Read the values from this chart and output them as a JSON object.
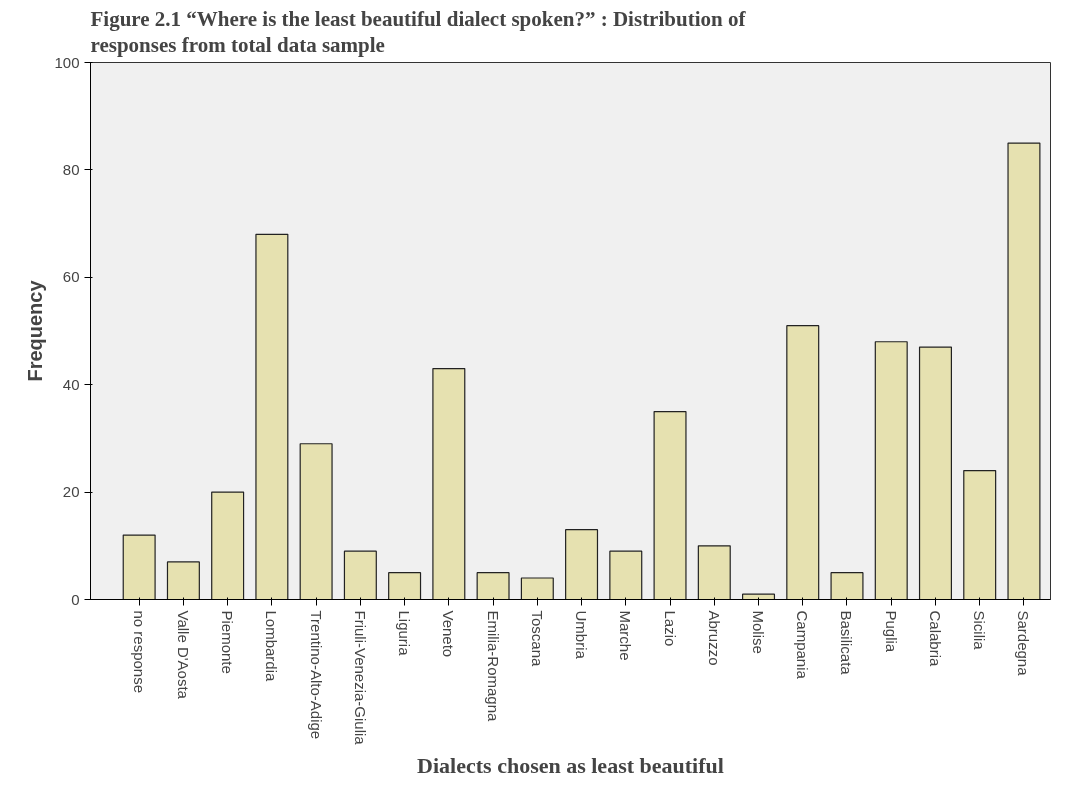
{
  "chart_data": {
    "type": "bar",
    "title": "Figure 2.1 “Where is the least beautiful dialect spoken?” : Distribution of responses from  total data sample",
    "xlabel": "Dialects chosen as least beautiful",
    "ylabel": "Frequency",
    "categories": [
      "no response",
      "Valle D'Aosta",
      "Piemonte",
      "Lombardia",
      "Trentino-Alto-Adige",
      "Friuli-Venezia-Giulia",
      "Liguria",
      "Veneto",
      "Emilia-Romagna",
      "Toscana",
      "Umbria",
      "Marche",
      "Lazio",
      "Abruzzo",
      "Molise",
      "Campania",
      "Basilicata",
      "Puglia",
      "Calabria",
      "Sicilia",
      "Sardegna"
    ],
    "values": [
      12,
      7,
      20,
      68,
      29,
      9,
      5,
      43,
      5,
      4,
      13,
      9,
      35,
      10,
      1,
      51,
      5,
      48,
      47,
      24,
      85
    ],
    "color": "#e6e1b0",
    "ylim": [
      0,
      100
    ],
    "yticks": [
      0,
      20,
      40,
      60,
      80,
      100
    ],
    "grid": false
  }
}
